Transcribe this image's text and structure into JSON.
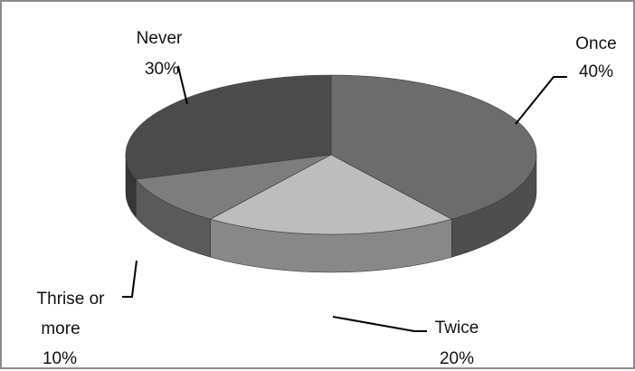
{
  "chart_data": {
    "type": "pie",
    "three_d": true,
    "legend": "none",
    "slices": [
      {
        "label": "Once",
        "value": 40,
        "value_label": "40%",
        "color": "#6c6c6c"
      },
      {
        "label": "Twice",
        "value": 20,
        "value_label": "20%",
        "color": "#bdbdbd"
      },
      {
        "label": "Thrise or more",
        "value": 10,
        "value_label": "10%",
        "color": "#7d7d7d"
      },
      {
        "label": "Never",
        "value": 30,
        "value_label": "30%",
        "color": "#4b4b4b"
      }
    ],
    "label_lines": {
      "once": [
        "Once",
        "40%"
      ],
      "twice": [
        "Twice",
        "20%"
      ],
      "thrise": [
        "Thrise or",
        "more",
        "10%"
      ],
      "never": [
        "Never",
        "30%"
      ]
    }
  }
}
